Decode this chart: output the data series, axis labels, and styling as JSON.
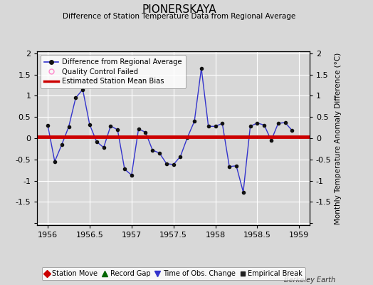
{
  "title": "PIONERSKAYA",
  "subtitle": "Difference of Station Temperature Data from Regional Average",
  "ylabel_right": "Monthly Temperature Anomaly Difference (°C)",
  "xlim": [
    1955.875,
    1959.125
  ],
  "ylim": [
    -2.05,
    2.05
  ],
  "yticks": [
    -2,
    -1.5,
    -1,
    -0.5,
    0,
    0.5,
    1,
    1.5,
    2
  ],
  "xticks": [
    1956,
    1956.5,
    1957,
    1957.5,
    1958,
    1958.5,
    1959
  ],
  "xtick_labels": [
    "1956",
    "1956.5",
    "1957",
    "1957.5",
    "1958",
    "1958.5",
    "1959"
  ],
  "ytick_labels": [
    "",
    "-1.5",
    "-1",
    "-0.5",
    "0",
    "0.5",
    "1",
    "1.5",
    "2"
  ],
  "background_color": "#d8d8d8",
  "plot_bg_color": "#d8d8d8",
  "grid_color": "#ffffff",
  "line_color": "#3333cc",
  "marker_color": "#111111",
  "bias_line_color": "#cc0000",
  "bias_y": 0.03,
  "x_data": [
    1956.0,
    1956.083,
    1956.167,
    1956.25,
    1956.333,
    1956.417,
    1956.5,
    1956.583,
    1956.667,
    1956.75,
    1956.833,
    1956.917,
    1957.0,
    1957.083,
    1957.167,
    1957.25,
    1957.333,
    1957.417,
    1957.5,
    1957.583,
    1957.667,
    1957.75,
    1957.833,
    1957.917,
    1958.0,
    1958.083,
    1958.167,
    1958.25,
    1958.333,
    1958.417,
    1958.5,
    1958.583,
    1958.667,
    1958.75,
    1958.833,
    1958.917
  ],
  "y_data": [
    0.3,
    -0.55,
    -0.15,
    0.27,
    0.95,
    1.15,
    0.32,
    -0.08,
    -0.22,
    0.29,
    0.2,
    -0.73,
    -0.87,
    0.22,
    0.14,
    -0.28,
    -0.35,
    -0.6,
    -0.62,
    -0.43,
    0.02,
    0.4,
    1.65,
    0.28,
    0.28,
    0.35,
    -0.67,
    -0.65,
    -1.27,
    0.28,
    0.36,
    0.31,
    -0.05,
    0.35,
    0.37,
    0.18
  ],
  "watermark": "Berkeley Earth",
  "bottom_legend": [
    {
      "label": "Station Move",
      "color": "#cc0000",
      "marker": "D",
      "markersize": 5
    },
    {
      "label": "Record Gap",
      "color": "#006600",
      "marker": "^",
      "markersize": 6
    },
    {
      "label": "Time of Obs. Change",
      "color": "#3333cc",
      "marker": "v",
      "markersize": 6
    },
    {
      "label": "Empirical Break",
      "color": "#222222",
      "marker": "s",
      "markersize": 5
    }
  ]
}
